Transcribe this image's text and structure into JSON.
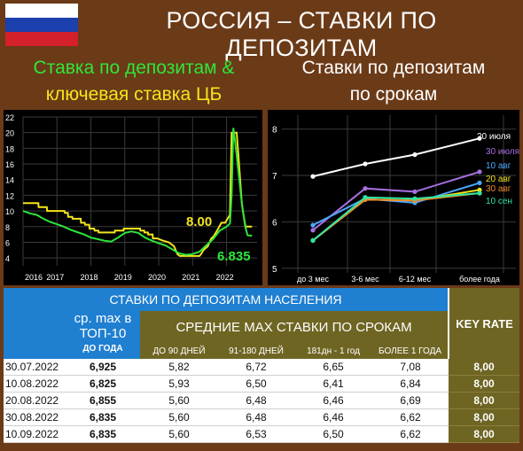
{
  "header": {
    "title": "РОССИЯ – СТАВКИ ПО ДЕПОЗИТАМ",
    "flag_colors": [
      "#ffffff",
      "#1c3fae",
      "#d4202a"
    ]
  },
  "left_chart": {
    "title_line1": "Ставка по депозитам &",
    "title_line2": "ключевая ставка ЦБ",
    "label_key_rate": "8.00",
    "label_deposit": "6.835"
  },
  "right_chart": {
    "title_line1": "Ставки по депозитам",
    "title_line2": "по срокам"
  },
  "chart_data": [
    {
      "type": "line",
      "title": "Ставка по депозитам & ключевая ставка ЦБ",
      "x_ticks": [
        "2016",
        "2017",
        "2018",
        "2019",
        "2020",
        "2021",
        "2022"
      ],
      "y_ticks": [
        "4",
        "6",
        "8",
        "10",
        "12",
        "14",
        "16",
        "18",
        "20",
        "22"
      ],
      "ylim": [
        3,
        22
      ],
      "xlim": [
        2016.0,
        2022.9
      ],
      "grid": true,
      "series": [
        {
          "color": "#f4e51c",
          "end_label": "8.00",
          "points": [
            [
              2016.0,
              11.0
            ],
            [
              2016.45,
              11.0
            ],
            [
              2016.46,
              10.5
            ],
            [
              2016.7,
              10.5
            ],
            [
              2016.71,
              10.0
            ],
            [
              2017.22,
              10.0
            ],
            [
              2017.23,
              9.75
            ],
            [
              2017.32,
              9.75
            ],
            [
              2017.33,
              9.25
            ],
            [
              2017.45,
              9.25
            ],
            [
              2017.46,
              9.0
            ],
            [
              2017.7,
              9.0
            ],
            [
              2017.71,
              8.5
            ],
            [
              2017.82,
              8.5
            ],
            [
              2017.83,
              8.25
            ],
            [
              2017.95,
              8.25
            ],
            [
              2017.96,
              7.75
            ],
            [
              2018.1,
              7.75
            ],
            [
              2018.11,
              7.5
            ],
            [
              2018.22,
              7.5
            ],
            [
              2018.23,
              7.25
            ],
            [
              2018.7,
              7.25
            ],
            [
              2018.71,
              7.5
            ],
            [
              2018.96,
              7.5
            ],
            [
              2018.97,
              7.75
            ],
            [
              2019.45,
              7.75
            ],
            [
              2019.46,
              7.5
            ],
            [
              2019.57,
              7.5
            ],
            [
              2019.58,
              7.25
            ],
            [
              2019.68,
              7.25
            ],
            [
              2019.69,
              7.0
            ],
            [
              2019.82,
              7.0
            ],
            [
              2019.83,
              6.5
            ],
            [
              2019.96,
              6.5
            ],
            [
              2020.1,
              6.25
            ],
            [
              2020.3,
              6.0
            ],
            [
              2020.45,
              5.5
            ],
            [
              2020.55,
              4.5
            ],
            [
              2020.62,
              4.25
            ],
            [
              2021.2,
              4.25
            ],
            [
              2021.25,
              4.5
            ],
            [
              2021.32,
              5.0
            ],
            [
              2021.45,
              5.5
            ],
            [
              2021.55,
              6.5
            ],
            [
              2021.62,
              6.75
            ],
            [
              2021.72,
              7.5
            ],
            [
              2021.85,
              8.5
            ],
            [
              2021.96,
              8.5
            ],
            [
              2022.1,
              9.5
            ],
            [
              2022.15,
              20.0
            ],
            [
              2022.3,
              20.0
            ],
            [
              2022.35,
              17.0
            ],
            [
              2022.4,
              14.0
            ],
            [
              2022.45,
              11.0
            ],
            [
              2022.5,
              9.5
            ],
            [
              2022.56,
              8.0
            ],
            [
              2022.75,
              8.0
            ]
          ]
        },
        {
          "color": "#2ee63a",
          "end_label": "6.835",
          "points": [
            [
              2016.0,
              10.0
            ],
            [
              2016.2,
              9.7
            ],
            [
              2016.4,
              9.5
            ],
            [
              2016.6,
              9.0
            ],
            [
              2016.8,
              8.6
            ],
            [
              2017.0,
              8.3
            ],
            [
              2017.2,
              8.0
            ],
            [
              2017.4,
              7.6
            ],
            [
              2017.6,
              7.3
            ],
            [
              2017.8,
              7.0
            ],
            [
              2018.0,
              6.6
            ],
            [
              2018.2,
              6.4
            ],
            [
              2018.4,
              6.2
            ],
            [
              2018.6,
              6.1
            ],
            [
              2018.8,
              6.6
            ],
            [
              2019.0,
              7.2
            ],
            [
              2019.2,
              7.4
            ],
            [
              2019.4,
              7.2
            ],
            [
              2019.6,
              6.6
            ],
            [
              2019.8,
              6.2
            ],
            [
              2020.0,
              5.9
            ],
            [
              2020.2,
              5.6
            ],
            [
              2020.4,
              5.1
            ],
            [
              2020.6,
              4.6
            ],
            [
              2020.8,
              4.4
            ],
            [
              2021.0,
              4.5
            ],
            [
              2021.2,
              4.8
            ],
            [
              2021.4,
              5.6
            ],
            [
              2021.6,
              6.4
            ],
            [
              2021.8,
              7.5
            ],
            [
              2022.0,
              8.0
            ],
            [
              2022.1,
              8.4
            ],
            [
              2022.15,
              12.0
            ],
            [
              2022.2,
              20.6
            ],
            [
              2022.25,
              19.0
            ],
            [
              2022.35,
              15.0
            ],
            [
              2022.45,
              11.0
            ],
            [
              2022.55,
              8.0
            ],
            [
              2022.62,
              6.9
            ],
            [
              2022.75,
              6.835
            ]
          ]
        }
      ]
    },
    {
      "type": "line",
      "title": "Ставки по депозитам по срокам",
      "categories": [
        "до 3 мес",
        "3-6 мес",
        "6-12 мес",
        "более года"
      ],
      "y_ticks": [
        "5",
        "6",
        "7",
        "8"
      ],
      "ylim": [
        4.9,
        8.3
      ],
      "grid": true,
      "series": [
        {
          "name": "20 июля",
          "color": "#ffffff",
          "values": [
            6.98,
            7.25,
            7.45,
            7.8
          ]
        },
        {
          "name": "30 июля",
          "color": "#a86fe0",
          "values": [
            5.82,
            6.72,
            6.65,
            7.08
          ]
        },
        {
          "name": "10 авг",
          "color": "#4aa8ff",
          "values": [
            5.93,
            6.5,
            6.41,
            6.84
          ]
        },
        {
          "name": "20 авг",
          "color": "#f4e51c",
          "values": [
            5.6,
            6.48,
            6.46,
            6.69
          ]
        },
        {
          "name": "30 авг",
          "color": "#f08a2a",
          "values": [
            5.6,
            6.48,
            6.46,
            6.62
          ]
        },
        {
          "name": "10 сен",
          "color": "#2ee6a0",
          "values": [
            5.6,
            6.53,
            6.5,
            6.62
          ]
        }
      ]
    }
  ],
  "table": {
    "title": "СТАВКИ ПО ДЕПОЗИТАМ НАСЕЛЕНИЯ",
    "top10_line1": "ср. max в",
    "top10_line2": "ТОП-10",
    "top10_line3": "ДО ГОДА",
    "avg_title": "СРЕДНИЕ MAX СТАВКИ ПО СРОКАМ",
    "key_rate": "KEY RATE",
    "columns": [
      "ДО 90 ДНЕЙ",
      "91-180 ДНЕЙ",
      "181дн - 1 год",
      "БОЛЕЕ 1 ГОДА"
    ],
    "rows": [
      {
        "date": "30.07.2022",
        "top10": "6,925",
        "c1": "5,82",
        "c2": "6,72",
        "c3": "6,65",
        "c4": "7,08",
        "key": "8,00"
      },
      {
        "date": "10.08.2022",
        "top10": "6,825",
        "c1": "5,93",
        "c2": "6,50",
        "c3": "6,41",
        "c4": "6,84",
        "key": "8,00"
      },
      {
        "date": "20.08.2022",
        "top10": "6,855",
        "c1": "5,60",
        "c2": "6,48",
        "c3": "6,46",
        "c4": "6,69",
        "key": "8,00"
      },
      {
        "date": "30.08.2022",
        "top10": "6,835",
        "c1": "5,60",
        "c2": "6,48",
        "c3": "6,46",
        "c4": "6,62",
        "key": "8,00"
      },
      {
        "date": "10.09.2022",
        "top10": "6,835",
        "c1": "5,60",
        "c2": "6,53",
        "c3": "6,50",
        "c4": "6,62",
        "key": "8,00"
      }
    ]
  }
}
